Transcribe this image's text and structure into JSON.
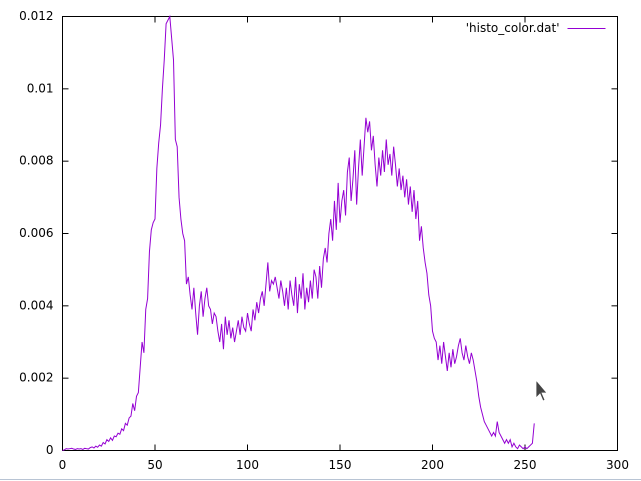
{
  "chart_data": {
    "type": "line",
    "x": [
      0,
      1,
      2,
      3,
      4,
      5,
      6,
      7,
      8,
      9,
      10,
      11,
      12,
      13,
      14,
      15,
      16,
      17,
      18,
      19,
      20,
      21,
      22,
      23,
      24,
      25,
      26,
      27,
      28,
      29,
      30,
      31,
      32,
      33,
      34,
      35,
      36,
      37,
      38,
      39,
      40,
      41,
      42,
      43,
      44,
      45,
      46,
      47,
      48,
      49,
      50,
      51,
      52,
      53,
      54,
      55,
      56,
      57,
      58,
      59,
      60,
      61,
      62,
      63,
      64,
      65,
      66,
      67,
      68,
      69,
      70,
      71,
      72,
      73,
      74,
      75,
      76,
      77,
      78,
      79,
      80,
      81,
      82,
      83,
      84,
      85,
      86,
      87,
      88,
      89,
      90,
      91,
      92,
      93,
      94,
      95,
      96,
      97,
      98,
      99,
      100,
      101,
      102,
      103,
      104,
      105,
      106,
      107,
      108,
      109,
      110,
      111,
      112,
      113,
      114,
      115,
      116,
      117,
      118,
      119,
      120,
      121,
      122,
      123,
      124,
      125,
      126,
      127,
      128,
      129,
      130,
      131,
      132,
      133,
      134,
      135,
      136,
      137,
      138,
      139,
      140,
      141,
      142,
      143,
      144,
      145,
      146,
      147,
      148,
      149,
      150,
      151,
      152,
      153,
      154,
      155,
      156,
      157,
      158,
      159,
      160,
      161,
      162,
      163,
      164,
      165,
      166,
      167,
      168,
      169,
      170,
      171,
      172,
      173,
      174,
      175,
      176,
      177,
      178,
      179,
      180,
      181,
      182,
      183,
      184,
      185,
      186,
      187,
      188,
      189,
      190,
      191,
      192,
      193,
      194,
      195,
      196,
      197,
      198,
      199,
      200,
      201,
      202,
      203,
      204,
      205,
      206,
      207,
      208,
      209,
      210,
      211,
      212,
      213,
      214,
      215,
      216,
      217,
      218,
      219,
      220,
      221,
      222,
      223,
      224,
      225,
      226,
      227,
      228,
      229,
      230,
      231,
      232,
      233,
      234,
      235,
      236,
      237,
      238,
      239,
      240,
      241,
      242,
      243,
      244,
      245,
      246,
      247,
      248,
      249,
      250,
      251,
      252,
      253,
      254,
      255
    ],
    "series": [
      {
        "name": "'histo_color.dat'",
        "color": "#9400d3",
        "values": [
          0.0,
          2e-05,
          5e-05,
          4e-05,
          5e-05,
          6e-05,
          4e-05,
          3e-05,
          5e-05,
          4e-05,
          5e-05,
          3e-05,
          6e-05,
          5e-05,
          4e-05,
          8e-05,
          0.0001,
          7e-05,
          0.00012,
          9e-05,
          0.00015,
          0.00012,
          0.00022,
          0.00018,
          0.0003,
          0.00025,
          0.00035,
          0.00028,
          0.0004,
          0.00038,
          0.00048,
          0.00045,
          0.0006,
          0.00055,
          0.00075,
          0.0007,
          0.0009,
          0.00095,
          0.0013,
          0.0011,
          0.0015,
          0.0016,
          0.0023,
          0.003,
          0.0027,
          0.0039,
          0.0042,
          0.0055,
          0.0061,
          0.0063,
          0.0064,
          0.0078,
          0.0085,
          0.009,
          0.01,
          0.0108,
          0.0118,
          0.0119,
          0.012,
          0.0114,
          0.0108,
          0.0086,
          0.0084,
          0.007,
          0.0064,
          0.006,
          0.0058,
          0.0046,
          0.0048,
          0.0043,
          0.0039,
          0.0045,
          0.0038,
          0.0032,
          0.004,
          0.0044,
          0.0037,
          0.0042,
          0.0045,
          0.004,
          0.0039,
          0.0035,
          0.0038,
          0.0037,
          0.0033,
          0.003,
          0.0035,
          0.0028,
          0.0037,
          0.0032,
          0.0036,
          0.0031,
          0.0034,
          0.003,
          0.0033,
          0.0036,
          0.0032,
          0.0037,
          0.0034,
          0.0033,
          0.0038,
          0.0035,
          0.0033,
          0.0039,
          0.0036,
          0.0041,
          0.0038,
          0.0042,
          0.0044,
          0.004,
          0.0046,
          0.0052,
          0.0044,
          0.0047,
          0.0046,
          0.0048,
          0.0045,
          0.0042,
          0.0047,
          0.0044,
          0.004,
          0.0045,
          0.0039,
          0.0047,
          0.0043,
          0.004,
          0.0048,
          0.0038,
          0.0046,
          0.0042,
          0.0049,
          0.0039,
          0.0045,
          0.0041,
          0.0047,
          0.0042,
          0.005,
          0.0048,
          0.0042,
          0.0051,
          0.0045,
          0.0053,
          0.0056,
          0.0052,
          0.006,
          0.0064,
          0.0058,
          0.0069,
          0.0061,
          0.0074,
          0.0063,
          0.0069,
          0.0072,
          0.0065,
          0.0077,
          0.0081,
          0.0069,
          0.0075,
          0.0083,
          0.0068,
          0.0078,
          0.0086,
          0.0076,
          0.0084,
          0.0092,
          0.0088,
          0.0091,
          0.0083,
          0.0087,
          0.0079,
          0.0073,
          0.0081,
          0.0076,
          0.0083,
          0.0077,
          0.0086,
          0.0079,
          0.0082,
          0.0076,
          0.0084,
          0.0079,
          0.0073,
          0.0078,
          0.0072,
          0.0076,
          0.007,
          0.0075,
          0.0068,
          0.0073,
          0.0066,
          0.0072,
          0.0064,
          0.0069,
          0.0058,
          0.0062,
          0.0056,
          0.0052,
          0.0049,
          0.0043,
          0.004,
          0.0033,
          0.0031,
          0.003,
          0.0025,
          0.0029,
          0.0024,
          0.003,
          0.0026,
          0.0022,
          0.0027,
          0.0023,
          0.0028,
          0.0024,
          0.0026,
          0.0029,
          0.0031,
          0.0027,
          0.0025,
          0.0029,
          0.0026,
          0.0024,
          0.0027,
          0.0025,
          0.0022,
          0.0019,
          0.0015,
          0.0012,
          0.001,
          0.0008,
          0.0007,
          0.0006,
          0.0005,
          0.0004,
          0.0005,
          0.0004,
          0.0008,
          0.0005,
          0.0004,
          0.0003,
          0.0002,
          0.0003,
          0.0002,
          0.0003,
          0.0001,
          0.0002,
          0.0001,
          5e-05,
          0.00015,
          0.0001,
          5e-05,
          0.0001,
          5e-05,
          0.0001,
          0.00015,
          0.0002,
          0.00075
        ]
      }
    ],
    "xlim": [
      0,
      300
    ],
    "xticks": [
      0,
      50,
      100,
      150,
      200,
      250,
      300
    ],
    "ylim": [
      0,
      0.012
    ],
    "yticks": [
      0,
      0.002,
      0.004,
      0.006,
      0.008,
      0.01,
      0.012
    ],
    "legend": "top-right"
  }
}
